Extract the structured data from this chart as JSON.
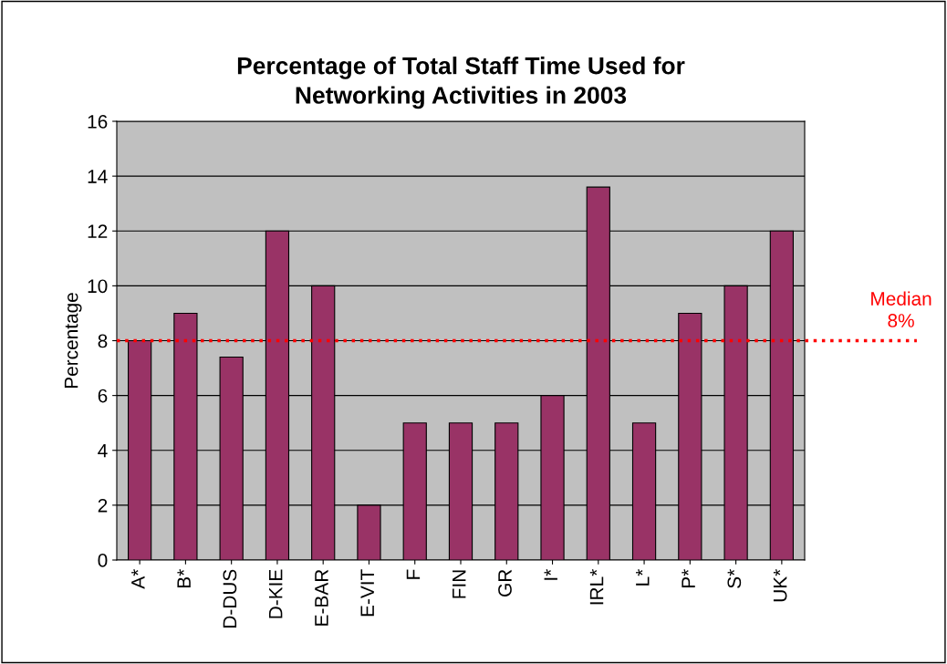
{
  "chart_data": {
    "type": "bar",
    "title": "Percentage of Total Staff Time Used for\nNetworking Activities in 2003",
    "ylabel": "Percentage",
    "categories": [
      "A*",
      "B*",
      "D-DUS",
      "D-KIE",
      "E-BAR",
      "E-VIT",
      "F",
      "FIN",
      "GR",
      "I*",
      "IRL*",
      "L*",
      "P*",
      "S*",
      "UK*"
    ],
    "values": [
      8,
      9,
      7.4,
      12,
      10,
      2,
      5,
      5,
      5,
      6,
      13.6,
      5,
      9,
      10,
      12
    ],
    "color": "#993366",
    "ylim": [
      0,
      16
    ],
    "yticks": [
      0,
      2,
      4,
      6,
      8,
      10,
      12,
      14,
      16
    ],
    "grid": "y",
    "ref_lines": [
      {
        "axis": "y",
        "value": 8,
        "label": "Median\n8%",
        "color": "#ff0000",
        "line_style": "dotted"
      }
    ]
  }
}
